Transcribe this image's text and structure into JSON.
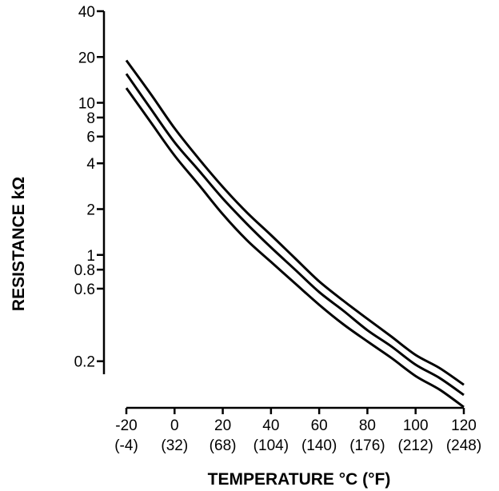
{
  "chart_data": {
    "type": "line",
    "title": "",
    "xlabel": "TEMPERATURE °C (°F)",
    "ylabel": "RESISTANCE kΩ",
    "y_scale": "log",
    "xlim": [
      -20,
      120
    ],
    "ylim": [
      0.1,
      40
    ],
    "x_ticks": [
      -20,
      0,
      20,
      40,
      60,
      80,
      100,
      120
    ],
    "x_tick_labels": [
      "-20",
      "0",
      "20",
      "40",
      "60",
      "80",
      "100",
      "120"
    ],
    "x_tick_sublabels": [
      "(-4)",
      "(32)",
      "(68)",
      "(104)",
      "(140)",
      "(176)",
      "(212)",
      "(248)"
    ],
    "y_ticks": [
      40,
      20,
      10,
      8,
      6,
      4,
      2,
      1,
      0.8,
      0.6,
      0.2
    ],
    "y_tick_labels": [
      "40",
      "20",
      "10",
      "8",
      "6",
      "4",
      "2",
      "1",
      "0.8",
      "0.6",
      "0.2"
    ],
    "grid": false,
    "legend": "none",
    "series": [
      {
        "x": [
          -20,
          -10,
          0,
          10,
          20,
          30,
          40,
          50,
          60,
          70,
          80,
          90,
          100,
          110,
          120
        ],
        "values": [
          19,
          11.5,
          6.8,
          4.3,
          2.8,
          1.9,
          1.35,
          0.95,
          0.67,
          0.5,
          0.38,
          0.29,
          0.22,
          0.18,
          0.14
        ]
      },
      {
        "x": [
          -20,
          -10,
          0,
          10,
          20,
          30,
          40,
          50,
          60,
          70,
          80,
          90,
          100,
          110,
          120
        ],
        "values": [
          15.5,
          9.2,
          5.5,
          3.6,
          2.35,
          1.6,
          1.12,
          0.8,
          0.57,
          0.43,
          0.32,
          0.25,
          0.19,
          0.155,
          0.12
        ]
      },
      {
        "x": [
          -20,
          -10,
          0,
          10,
          20,
          30,
          40,
          50,
          60,
          70,
          80,
          90,
          100,
          110,
          120
        ],
        "values": [
          12.5,
          7.5,
          4.5,
          2.9,
          1.85,
          1.25,
          0.9,
          0.65,
          0.47,
          0.35,
          0.27,
          0.21,
          0.16,
          0.13,
          0.1
        ]
      }
    ]
  }
}
